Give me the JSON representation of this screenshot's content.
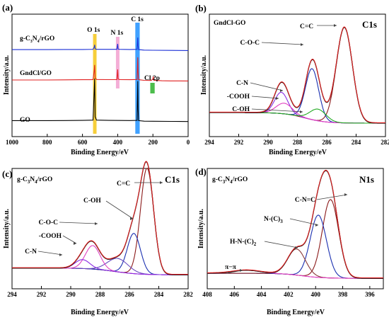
{
  "chart_data": [
    {
      "type": "line",
      "panel": "(a)",
      "xlabel": "Binding Energy/eV",
      "ylabel": "Intensity/a.u.",
      "xlim": [
        1000,
        0
      ],
      "xticks": [
        1000,
        800,
        600,
        400,
        200,
        0
      ],
      "series": [
        {
          "name": "g-C3N4/rGO",
          "color": "#1a2fd6",
          "baseline": 0.3,
          "x": [
            1000,
            900,
            800,
            700,
            600,
            540,
            533,
            531,
            528,
            520,
            450,
            405,
            400,
            397,
            390,
            330,
            290,
            286,
            284,
            281,
            250,
            200,
            100,
            0
          ],
          "y": [
            0.1,
            0.1,
            0.1,
            0.11,
            0.11,
            0.12,
            0.3,
            0.48,
            0.16,
            0.12,
            0.12,
            0.12,
            0.55,
            0.14,
            0.12,
            0.11,
            0.12,
            1.05,
            0.4,
            0.1,
            0.06,
            0.05,
            0.04,
            0.03
          ]
        },
        {
          "name": "GndCl/GO",
          "color": "#e02020",
          "baseline": 0.55,
          "x": [
            1000,
            900,
            800,
            700,
            600,
            540,
            533,
            531,
            528,
            520,
            450,
            405,
            400,
            397,
            390,
            330,
            290,
            286,
            284,
            281,
            250,
            210,
            200,
            198,
            195,
            150,
            100,
            0
          ],
          "y": [
            0.12,
            0.12,
            0.12,
            0.13,
            0.14,
            0.15,
            0.9,
            1.3,
            0.3,
            0.16,
            0.15,
            0.15,
            0.95,
            0.2,
            0.15,
            0.14,
            0.16,
            1.9,
            0.7,
            0.14,
            0.09,
            0.08,
            0.2,
            0.4,
            0.1,
            0.06,
            0.05,
            0.04
          ]
        },
        {
          "name": "GO",
          "color": "#000000",
          "baseline": 0.88,
          "x": [
            1000,
            900,
            800,
            700,
            600,
            540,
            533,
            531,
            528,
            520,
            450,
            330,
            290,
            286,
            284,
            281,
            250,
            200,
            100,
            0
          ],
          "y": [
            0.1,
            0.1,
            0.1,
            0.11,
            0.12,
            0.14,
            2.6,
            3.4,
            0.4,
            0.14,
            0.12,
            0.11,
            0.12,
            3.2,
            1.0,
            0.1,
            0.06,
            0.05,
            0.04,
            0.03
          ]
        }
      ],
      "annotations": [
        "O 1s",
        "N 1s",
        "C 1s",
        "Cl 2p"
      ],
      "highlights": [
        {
          "label": "O 1s",
          "color": "#f5c518",
          "range": [
            540,
            520
          ]
        },
        {
          "label": "N 1s",
          "color": "#f2a0cf",
          "range": [
            410,
            390
          ]
        },
        {
          "label": "C 1s",
          "color": "#1e90ff",
          "range": [
            300,
            275
          ]
        },
        {
          "label": "Cl 2p",
          "color": "#2db22d",
          "range": [
            215,
            190
          ]
        }
      ],
      "sample_labels": [
        "g-C3N4/rGO",
        "GndCl/GO",
        "GO"
      ]
    },
    {
      "type": "line",
      "panel": "(b)",
      "title": "C1s",
      "sample": "GndCl-GO",
      "xlabel": "Binding Energy/eV",
      "ylabel": "Intensity/a.u.",
      "xlim": [
        294,
        282
      ],
      "xticks": [
        294,
        292,
        290,
        288,
        286,
        284,
        282
      ],
      "peaks": [
        {
          "name": "C=C",
          "center": 284.8,
          "height": 0.9,
          "width": 0.55,
          "color": "#8b1a1a"
        },
        {
          "name": "C-O-C",
          "center": 287.0,
          "height": 0.48,
          "width": 0.45,
          "color": "#1a2fb0"
        },
        {
          "name": "C-N",
          "center": 289.1,
          "height": 0.2,
          "width": 0.45,
          "color": "#8a2be2"
        },
        {
          "name": "-COOH",
          "center": 288.9,
          "height": 0.1,
          "width": 0.55,
          "color": "#e040c0"
        },
        {
          "name": "C-OH",
          "center": 286.6,
          "height": 0.11,
          "width": 0.55,
          "color": "#22aa22"
        }
      ],
      "labels": [
        "C=C",
        "C-O-C",
        "C-N",
        "-COOH",
        "C-OH"
      ]
    },
    {
      "type": "line",
      "panel": "(c)",
      "title": "C1s",
      "sample": "g-C3N4/rGO",
      "xlabel": "Binding Energy/eV",
      "ylabel": "Intensity/a.u.",
      "xlim": [
        294,
        282
      ],
      "xticks": [
        294,
        292,
        290,
        288,
        286,
        284,
        282
      ],
      "peaks": [
        {
          "name": "C=C",
          "center": 284.8,
          "height": 0.95,
          "width": 0.45,
          "color": "#8b1a1a"
        },
        {
          "name": "C-OH",
          "center": 285.7,
          "height": 0.36,
          "width": 0.45,
          "color": "#1a2fb0"
        },
        {
          "name": "C-O-C",
          "center": 286.8,
          "height": 0.12,
          "width": 0.7,
          "color": "#6a4cc0"
        },
        {
          "name": "-COOH",
          "center": 288.5,
          "height": 0.21,
          "width": 0.5,
          "color": "#e040c0"
        },
        {
          "name": "C-N",
          "center": 289.2,
          "height": 0.08,
          "width": 0.5,
          "color": "#8a2be2"
        }
      ],
      "labels": [
        "C=C",
        "C-OH",
        "C-O-C",
        "-COOH",
        "C-N"
      ]
    },
    {
      "type": "line",
      "panel": "(d)",
      "title": "N1s",
      "sample": "g-C3N4/rGO",
      "xlabel": "Binding Energy/eV",
      "ylabel": "Intensity/a.u.",
      "xlim": [
        408,
        395
      ],
      "xticks": [
        408,
        406,
        404,
        402,
        400,
        398,
        396
      ],
      "peaks": [
        {
          "name": "C-N=C",
          "center": 398.9,
          "height": 0.78,
          "width": 0.6,
          "color": "#8b1a1a"
        },
        {
          "name": "N-(C)3",
          "center": 399.8,
          "height": 0.62,
          "width": 0.6,
          "color": "#1a2fb0"
        },
        {
          "name": "H-N-(C)2",
          "center": 401.4,
          "height": 0.26,
          "width": 0.65,
          "color": "#8b3a3a"
        },
        {
          "name": "π−π",
          "center": 405.1,
          "height": 0.03,
          "width": 1.0,
          "color": "#e040c0"
        }
      ],
      "labels": [
        "C-N=C",
        "N-(C)3",
        "H-N-(C)2",
        "π−π"
      ]
    }
  ]
}
